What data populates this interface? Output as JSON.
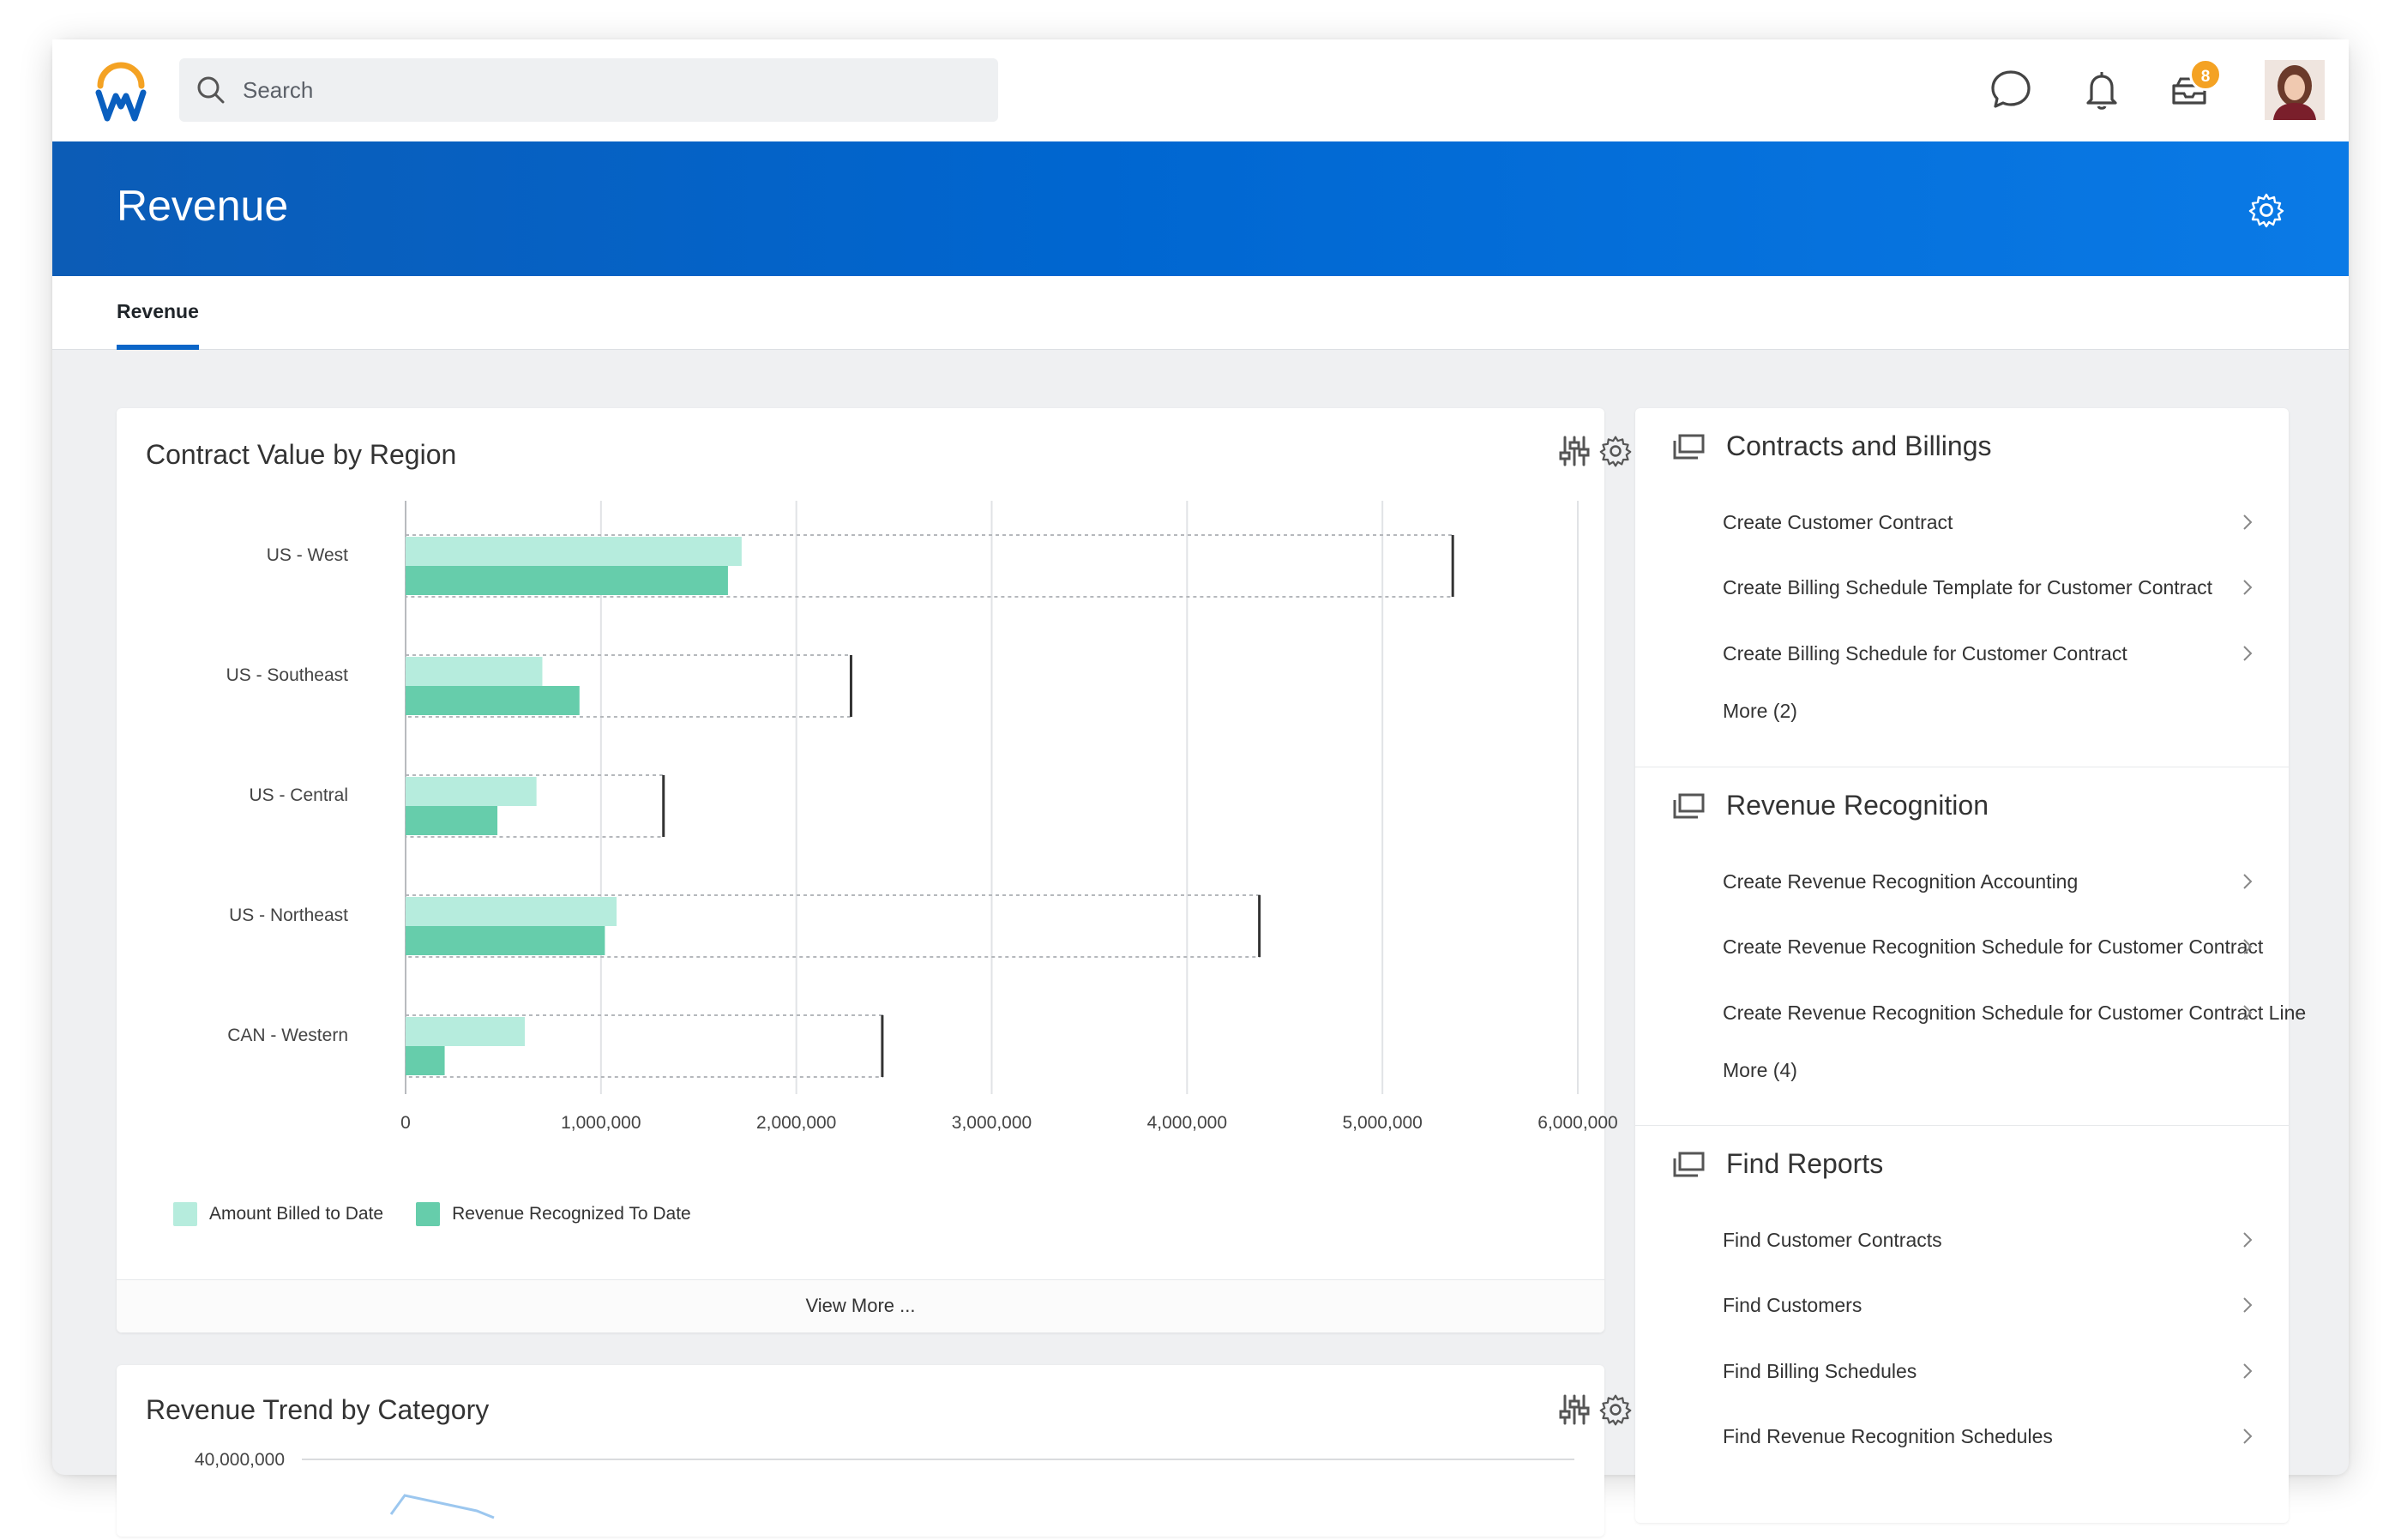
{
  "app": {
    "search_placeholder": "Search",
    "notification_badge": "8",
    "accent_color": "#0066d0",
    "badge_color": "#f4a223"
  },
  "header": {
    "title": "Revenue"
  },
  "tabs": [
    {
      "label": "Revenue",
      "active": true
    }
  ],
  "contract_card": {
    "title": "Contract Value by Region",
    "view_more": "View More ..."
  },
  "trend_card": {
    "title": "Revenue Trend by Category",
    "top_tick": "40,000,000"
  },
  "chart_data": [
    {
      "type": "bar",
      "orientation": "horizontal",
      "title": "Contract Value by Region",
      "categories": [
        "US - West",
        "US - Southeast",
        "US - Central",
        "US - Northeast",
        "CAN - Western"
      ],
      "series": [
        {
          "name": "Amount Billed to Date",
          "color": "#b6ecdd",
          "values": [
            1720000,
            700000,
            670000,
            1080000,
            610000
          ]
        },
        {
          "name": "Revenue Recognized To Date",
          "color": "#66cdab",
          "values": [
            1650000,
            890000,
            470000,
            1020000,
            200000
          ]
        }
      ],
      "target_values": [
        5360000,
        2280000,
        1320000,
        4370000,
        2440000
      ],
      "xlim": [
        0,
        6000000
      ],
      "x_ticks": [
        "0",
        "1,000,000",
        "2,000,000",
        "3,000,000",
        "4,000,000",
        "5,000,000",
        "6,000,000"
      ],
      "grid": true,
      "legend_position": "bottom-left"
    },
    {
      "type": "line",
      "title": "Revenue Trend by Category",
      "y_ticks": [
        "40,000,000"
      ],
      "partial": true
    }
  ],
  "sections": [
    {
      "title": "Contracts and Billings",
      "links": [
        "Create Customer Contract",
        "Create Billing Schedule Template for Customer Contract",
        "Create Billing Schedule for Customer Contract"
      ],
      "more": "More (2)"
    },
    {
      "title": "Revenue Recognition",
      "links": [
        "Create Revenue Recognition Accounting",
        "Create Revenue Recognition Schedule for Customer Contract",
        "Create Revenue Recognition Schedule for Customer Contract Line"
      ],
      "more": "More (4)"
    },
    {
      "title": "Find Reports",
      "links": [
        "Find Customer Contracts",
        "Find Customers",
        "Find Billing Schedules",
        "Find Revenue Recognition Schedules"
      ]
    }
  ]
}
